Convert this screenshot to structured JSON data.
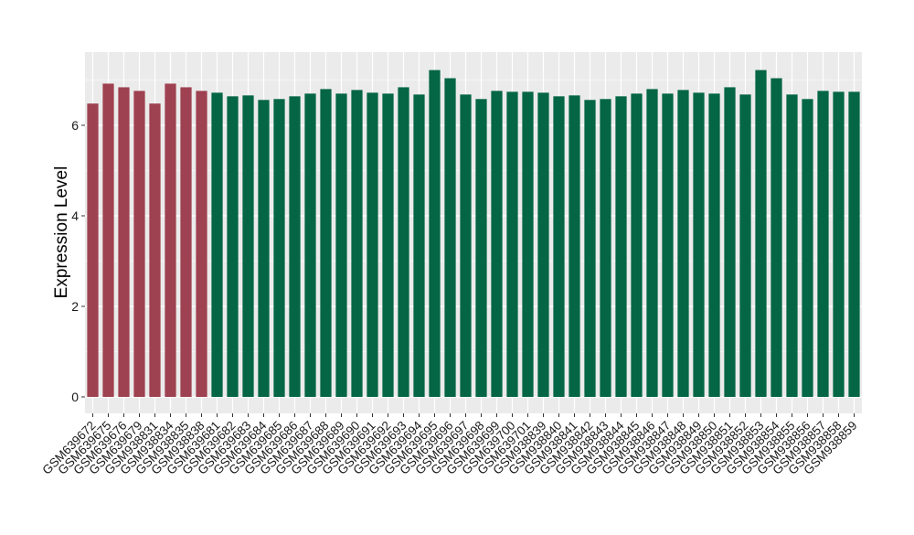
{
  "chart_data": {
    "type": "bar",
    "ylabel": "Expression Level",
    "xlabel": "",
    "title": "",
    "ylim": [
      0,
      7.5
    ],
    "yticks": [
      0,
      2,
      4,
      6
    ],
    "grid": true,
    "legend": "none",
    "colors": {
      "group_a": "#9e4150",
      "group_b": "#046644",
      "panel": "#ebebeb",
      "grid": "#ffffff",
      "axis_text": "#1a1a1a",
      "tick": "#333333"
    },
    "categories": [
      "GSM639672",
      "GSM639675",
      "GSM639676",
      "GSM639679",
      "GSM938831",
      "GSM938834",
      "GSM938835",
      "GSM938838",
      "GSM639681",
      "GSM639682",
      "GSM639683",
      "GSM639684",
      "GSM639685",
      "GSM639686",
      "GSM639687",
      "GSM639688",
      "GSM639689",
      "GSM639690",
      "GSM639691",
      "GSM639692",
      "GSM639693",
      "GSM639694",
      "GSM639695",
      "GSM639696",
      "GSM639697",
      "GSM639698",
      "GSM639699",
      "GSM639700",
      "GSM639701",
      "GSM938839",
      "GSM938840",
      "GSM938841",
      "GSM938842",
      "GSM938843",
      "GSM938844",
      "GSM938845",
      "GSM938846",
      "GSM938847",
      "GSM938848",
      "GSM938849",
      "GSM938850",
      "GSM938851",
      "GSM938852",
      "GSM938853",
      "GSM938854",
      "GSM938855",
      "GSM938856",
      "GSM938857",
      "GSM938858",
      "GSM938859"
    ],
    "values": [
      6.48,
      6.92,
      6.84,
      6.76,
      6.48,
      6.92,
      6.84,
      6.76,
      6.72,
      6.64,
      6.66,
      6.56,
      6.58,
      6.64,
      6.7,
      6.8,
      6.7,
      6.78,
      6.72,
      6.7,
      6.84,
      6.68,
      7.22,
      7.04,
      6.68,
      6.58,
      6.76,
      6.74,
      6.74,
      6.72,
      6.64,
      6.66,
      6.56,
      6.58,
      6.64,
      6.7,
      6.8,
      6.7,
      6.78,
      6.72,
      6.7,
      6.84,
      6.68,
      7.22,
      7.04,
      6.68,
      6.58,
      6.76,
      6.74,
      6.74
    ],
    "groups": [
      "a",
      "a",
      "a",
      "a",
      "a",
      "a",
      "a",
      "a",
      "b",
      "b",
      "b",
      "b",
      "b",
      "b",
      "b",
      "b",
      "b",
      "b",
      "b",
      "b",
      "b",
      "b",
      "b",
      "b",
      "b",
      "b",
      "b",
      "b",
      "b",
      "b",
      "b",
      "b",
      "b",
      "b",
      "b",
      "b",
      "b",
      "b",
      "b",
      "b",
      "b",
      "b",
      "b",
      "b",
      "b",
      "b",
      "b",
      "b",
      "b",
      "b"
    ]
  }
}
